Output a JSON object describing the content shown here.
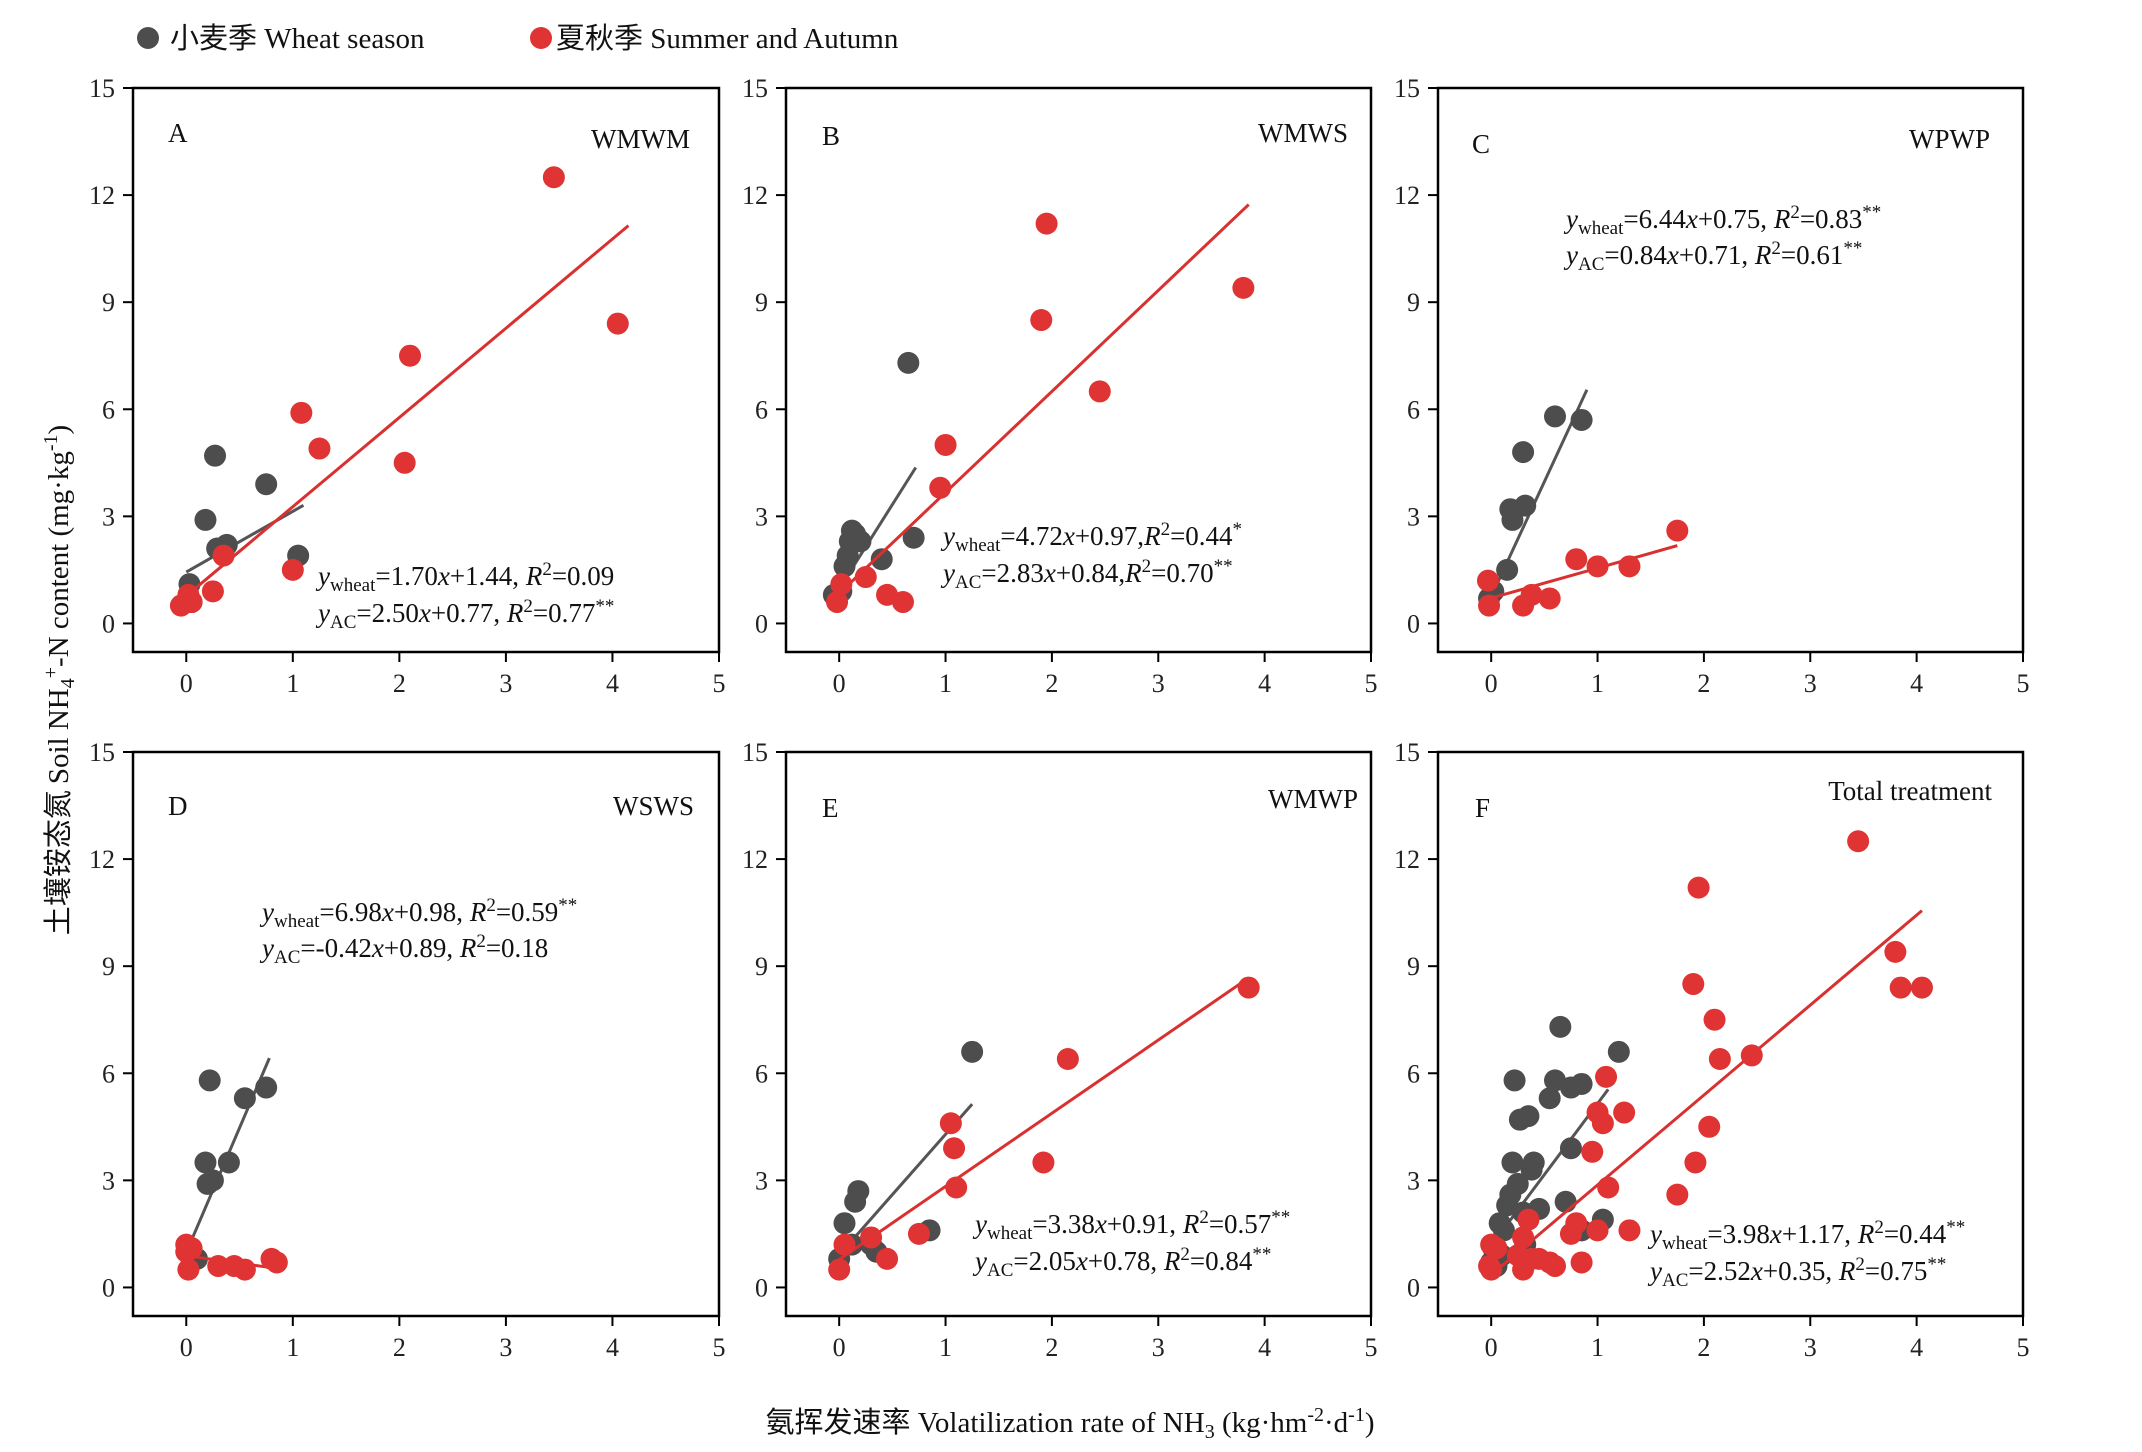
{
  "legend": {
    "wheat": "小麦季 Wheat season",
    "summer": "夏秋季 Summer and Autumn"
  },
  "colors": {
    "wheat": "#4d4d4d",
    "summer": "#e03333",
    "wheat_line": "#555555",
    "summer_line": "#d93030"
  },
  "axes": {
    "ylabel_cn": "土壤铵态氮",
    "ylabel_en_pre": "Soil NH",
    "ylabel_en_sub": "4",
    "ylabel_en_sup": "+",
    "ylabel_en_post": "-N content (mg·kg",
    "ylabel_unit_sup": "-1",
    "ylabel_end": ")",
    "xlabel_pre": "氨挥发速率 Volatilization rate of  NH",
    "xlabel_sub": "3",
    "xlabel_mid": " (kg·hm",
    "xlabel_sup1": "-2",
    "xlabel_dot": "·d",
    "xlabel_sup2": "-1",
    "xlabel_end": ")"
  },
  "chart_data": [
    {
      "type": "scatter",
      "panel": "A",
      "treatment": "WMWM",
      "xlim": [
        -0.5,
        5
      ],
      "ylim": [
        -0.8,
        15
      ],
      "xticks": [
        "0",
        "1",
        "2",
        "3",
        "4",
        "5"
      ],
      "yticks": [
        "0",
        "3",
        "6",
        "9",
        "12",
        "15"
      ],
      "equations": [
        {
          "y": "y",
          "sub": "wheat",
          "rhs": "=1.70x+1.44, R",
          "sup": "2",
          "tail": "=0.09",
          "stars": ""
        },
        {
          "y": "y",
          "sub": "AC",
          "rhs": "=2.50x+0.77, R",
          "sup": "2",
          "tail": "=0.77",
          "stars": "**"
        }
      ],
      "series": [
        {
          "group": "wheat",
          "points": [
            [
              0.03,
              1.1
            ],
            [
              0.05,
              0.6
            ],
            [
              0.18,
              2.9
            ],
            [
              0.27,
              4.7
            ],
            [
              0.29,
              2.1
            ],
            [
              0.38,
              2.2
            ],
            [
              0.75,
              3.9
            ],
            [
              1.05,
              1.9
            ]
          ],
          "fit": [
            0,
            1.1
          ]
        },
        {
          "group": "summer",
          "points": [
            [
              -0.05,
              0.5
            ],
            [
              0.02,
              0.8
            ],
            [
              0.05,
              0.6
            ],
            [
              0.25,
              0.9
            ],
            [
              0.35,
              1.9
            ],
            [
              1.0,
              1.5
            ],
            [
              1.08,
              5.9
            ],
            [
              1.25,
              4.9
            ],
            [
              2.05,
              4.5
            ],
            [
              2.1,
              7.5
            ],
            [
              3.45,
              12.5
            ],
            [
              4.05,
              8.4
            ]
          ],
          "fit": [
            0,
            4.15
          ]
        }
      ]
    },
    {
      "type": "scatter",
      "panel": "B",
      "treatment": "WMWS",
      "xlim": [
        -0.5,
        5
      ],
      "ylim": [
        -0.8,
        15
      ],
      "xticks": [
        "0",
        "1",
        "2",
        "3",
        "4",
        "5"
      ],
      "yticks": [
        "0",
        "3",
        "6",
        "9",
        "12",
        "15"
      ],
      "equations": [
        {
          "y": "y",
          "sub": "wheat",
          "rhs": "=4.72x+0.97,R",
          "sup": "2",
          "tail": "=0.44",
          "stars": "*"
        },
        {
          "y": "y",
          "sub": "AC",
          "rhs": "=2.83x+0.84,R",
          "sup": "2",
          "tail": "=0.70",
          "stars": "**"
        }
      ],
      "series": [
        {
          "group": "wheat",
          "points": [
            [
              -0.05,
              0.8
            ],
            [
              0.02,
              0.9
            ],
            [
              0.05,
              1.6
            ],
            [
              0.08,
              1.9
            ],
            [
              0.1,
              2.3
            ],
            [
              0.12,
              2.6
            ],
            [
              0.15,
              2.5
            ],
            [
              0.2,
              2.3
            ],
            [
              0.4,
              1.8
            ],
            [
              0.65,
              7.3
            ],
            [
              0.7,
              2.4
            ]
          ],
          "fit": [
            0,
            0.72
          ]
        },
        {
          "group": "summer",
          "points": [
            [
              -0.02,
              0.6
            ],
            [
              0.02,
              1.1
            ],
            [
              0.25,
              1.3
            ],
            [
              0.45,
              0.8
            ],
            [
              0.6,
              0.6
            ],
            [
              0.95,
              3.8
            ],
            [
              1.0,
              5.0
            ],
            [
              1.9,
              8.5
            ],
            [
              1.95,
              11.2
            ],
            [
              2.45,
              6.5
            ],
            [
              3.8,
              9.4
            ]
          ],
          "fit": [
            0,
            3.85
          ]
        }
      ]
    },
    {
      "type": "scatter",
      "panel": "C",
      "treatment": "WPWP",
      "xlim": [
        -0.5,
        5
      ],
      "ylim": [
        -0.8,
        15
      ],
      "xticks": [
        "0",
        "1",
        "2",
        "3",
        "4",
        "5"
      ],
      "yticks": [
        "0",
        "3",
        "6",
        "9",
        "12",
        "15"
      ],
      "equations": [
        {
          "y": "y",
          "sub": "wheat",
          "rhs": "=6.44x+0.75, R",
          "sup": "2",
          "tail": "=0.83",
          "stars": "**"
        },
        {
          "y": "y",
          "sub": "AC",
          "rhs": "=0.84x+0.71, R",
          "sup": "2",
          "tail": "=0.61",
          "stars": "**"
        }
      ],
      "series": [
        {
          "group": "wheat",
          "points": [
            [
              -0.02,
              0.7
            ],
            [
              0.02,
              0.9
            ],
            [
              0.15,
              1.5
            ],
            [
              0.18,
              3.2
            ],
            [
              0.2,
              2.9
            ],
            [
              0.3,
              4.8
            ],
            [
              0.32,
              3.3
            ],
            [
              0.6,
              5.8
            ],
            [
              0.85,
              5.7
            ]
          ],
          "fit": [
            0,
            0.9
          ]
        },
        {
          "group": "summer",
          "points": [
            [
              -0.03,
              1.2
            ],
            [
              -0.02,
              0.5
            ],
            [
              0.3,
              0.5
            ],
            [
              0.38,
              0.8
            ],
            [
              0.55,
              0.7
            ],
            [
              0.8,
              1.8
            ],
            [
              1.0,
              1.6
            ],
            [
              1.3,
              1.6
            ],
            [
              1.75,
              2.6
            ]
          ],
          "fit": [
            0,
            1.75
          ]
        }
      ]
    },
    {
      "type": "scatter",
      "panel": "D",
      "treatment": "WSWS",
      "xlim": [
        -0.5,
        5
      ],
      "ylim": [
        -0.8,
        15
      ],
      "xticks": [
        "0",
        "1",
        "2",
        "3",
        "4",
        "5"
      ],
      "yticks": [
        "0",
        "3",
        "6",
        "9",
        "12",
        "15"
      ],
      "equations": [
        {
          "y": "y",
          "sub": "wheat",
          "rhs": "=6.98x+0.98, R",
          "sup": "2",
          "tail": "=0.59",
          "stars": "**"
        },
        {
          "y": "y",
          "sub": "AC",
          "rhs": "=-0.42x+0.89, R",
          "sup": "2",
          "tail": "=0.18",
          "stars": ""
        }
      ],
      "series": [
        {
          "group": "wheat",
          "points": [
            [
              0.1,
              0.8
            ],
            [
              0.18,
              3.5
            ],
            [
              0.2,
              2.9
            ],
            [
              0.22,
              5.8
            ],
            [
              0.25,
              3.0
            ],
            [
              0.4,
              3.5
            ],
            [
              0.55,
              5.3
            ],
            [
              0.75,
              5.6
            ]
          ],
          "fit": [
            0,
            0.78
          ]
        },
        {
          "group": "summer",
          "points": [
            [
              0.0,
              1.2
            ],
            [
              0.0,
              1.0
            ],
            [
              0.02,
              0.5
            ],
            [
              0.05,
              1.1
            ],
            [
              0.3,
              0.6
            ],
            [
              0.45,
              0.6
            ],
            [
              0.55,
              0.5
            ],
            [
              0.8,
              0.8
            ],
            [
              0.85,
              0.7
            ]
          ],
          "fit": [
            0,
            0.85
          ]
        }
      ]
    },
    {
      "type": "scatter",
      "panel": "E",
      "treatment": "WMWP",
      "xlim": [
        -0.5,
        5
      ],
      "ylim": [
        -0.8,
        15
      ],
      "xticks": [
        "0",
        "1",
        "2",
        "3",
        "4",
        "5"
      ],
      "yticks": [
        "0",
        "3",
        "6",
        "9",
        "12",
        "15"
      ],
      "equations": [
        {
          "y": "y",
          "sub": "wheat",
          "rhs": "=3.38x+0.91, R",
          "sup": "2",
          "tail": "=0.57",
          "stars": "**"
        },
        {
          "y": "y",
          "sub": "AC",
          "rhs": "=2.05x+0.78, R",
          "sup": "2",
          "tail": "=0.84",
          "stars": "**"
        }
      ],
      "series": [
        {
          "group": "wheat",
          "points": [
            [
              0.0,
              0.8
            ],
            [
              0.05,
              1.8
            ],
            [
              0.12,
              1.2
            ],
            [
              0.15,
              2.4
            ],
            [
              0.18,
              2.7
            ],
            [
              0.3,
              1.2
            ],
            [
              0.35,
              1.0
            ],
            [
              0.85,
              1.6
            ],
            [
              1.25,
              6.6
            ]
          ],
          "fit": [
            0,
            1.25
          ]
        },
        {
          "group": "summer",
          "points": [
            [
              0.0,
              0.5
            ],
            [
              0.05,
              1.2
            ],
            [
              0.3,
              1.4
            ],
            [
              0.45,
              0.8
            ],
            [
              0.75,
              1.5
            ],
            [
              1.05,
              4.6
            ],
            [
              1.08,
              3.9
            ],
            [
              1.1,
              2.8
            ],
            [
              1.92,
              3.5
            ],
            [
              2.15,
              6.4
            ],
            [
              3.85,
              8.4
            ]
          ],
          "fit": [
            0,
            3.85
          ]
        }
      ]
    },
    {
      "type": "scatter",
      "panel": "F",
      "treatment": "Total treatment",
      "xlim": [
        -0.5,
        5
      ],
      "ylim": [
        -0.8,
        15
      ],
      "xticks": [
        "0",
        "1",
        "2",
        "3",
        "4",
        "5"
      ],
      "yticks": [
        "0",
        "3",
        "6",
        "9",
        "12",
        "15"
      ],
      "equations": [
        {
          "y": "y",
          "sub": "wheat",
          "rhs": "=3.98x+1.17, R",
          "sup": "2",
          "tail": "=0.44",
          "stars": "**"
        },
        {
          "y": "y",
          "sub": "AC",
          "rhs": "=2.52x+0.35, R",
          "sup": "2",
          "tail": "=0.75",
          "stars": "**"
        }
      ],
      "series": [
        {
          "group": "wheat",
          "points": [
            [
              0.0,
              0.7
            ],
            [
              0.02,
              1.1
            ],
            [
              0.05,
              0.6
            ],
            [
              0.08,
              1.8
            ],
            [
              0.1,
              0.9
            ],
            [
              0.12,
              1.6
            ],
            [
              0.15,
              2.3
            ],
            [
              0.18,
              2.6
            ],
            [
              0.2,
              3.5
            ],
            [
              0.22,
              5.8
            ],
            [
              0.25,
              2.9
            ],
            [
              0.27,
              4.7
            ],
            [
              0.3,
              2.1
            ],
            [
              0.32,
              1.2
            ],
            [
              0.35,
              4.8
            ],
            [
              0.38,
              3.3
            ],
            [
              0.4,
              3.5
            ],
            [
              0.45,
              2.2
            ],
            [
              0.55,
              5.3
            ],
            [
              0.6,
              5.8
            ],
            [
              0.65,
              7.3
            ],
            [
              0.7,
              2.4
            ],
            [
              0.75,
              5.6
            ],
            [
              0.75,
              3.9
            ],
            [
              0.85,
              5.7
            ],
            [
              0.85,
              1.6
            ],
            [
              1.05,
              1.9
            ],
            [
              1.2,
              6.6
            ]
          ],
          "fit": [
            0,
            1.1
          ]
        },
        {
          "group": "summer",
          "points": [
            [
              -0.02,
              0.6
            ],
            [
              0.0,
              1.2
            ],
            [
              0.0,
              0.5
            ],
            [
              0.05,
              1.1
            ],
            [
              0.25,
              0.9
            ],
            [
              0.3,
              1.4
            ],
            [
              0.3,
              0.5
            ],
            [
              0.35,
              1.9
            ],
            [
              0.38,
              0.8
            ],
            [
              0.45,
              0.8
            ],
            [
              0.55,
              0.7
            ],
            [
              0.6,
              0.6
            ],
            [
              0.75,
              1.5
            ],
            [
              0.8,
              1.8
            ],
            [
              0.85,
              0.7
            ],
            [
              0.95,
              3.8
            ],
            [
              1.0,
              1.6
            ],
            [
              1.0,
              4.9
            ],
            [
              1.05,
              4.6
            ],
            [
              1.08,
              5.9
            ],
            [
              1.1,
              2.8
            ],
            [
              1.25,
              4.9
            ],
            [
              1.3,
              1.6
            ],
            [
              1.75,
              2.6
            ],
            [
              1.9,
              8.5
            ],
            [
              1.92,
              3.5
            ],
            [
              1.95,
              11.2
            ],
            [
              2.05,
              4.5
            ],
            [
              2.1,
              7.5
            ],
            [
              2.15,
              6.4
            ],
            [
              2.45,
              6.5
            ],
            [
              3.45,
              12.5
            ],
            [
              3.8,
              9.4
            ],
            [
              3.85,
              8.4
            ],
            [
              4.05,
              8.4
            ]
          ],
          "fit": [
            0,
            4.05
          ]
        }
      ]
    }
  ]
}
